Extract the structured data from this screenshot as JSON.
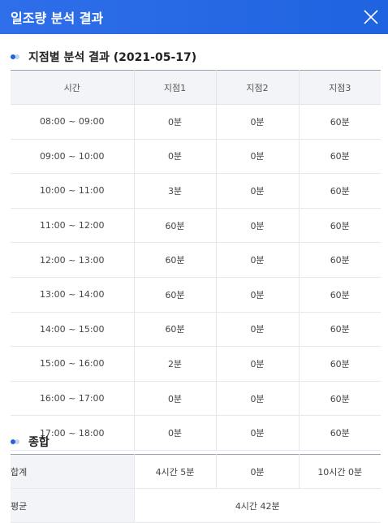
{
  "header": {
    "title": "일조량 분석 결과"
  },
  "section1": {
    "title": "지점별 분석 결과 (2021-05-17)"
  },
  "table": {
    "columns": [
      "시간",
      "지점1",
      "지점2",
      "지점3"
    ],
    "rows": [
      [
        "08:00 ~ 09:00",
        "0분",
        "0분",
        "60분"
      ],
      [
        "09:00 ~ 10:00",
        "0분",
        "0분",
        "60분"
      ],
      [
        "10:00 ~ 11:00",
        "3분",
        "0분",
        "60분"
      ],
      [
        "11:00 ~ 12:00",
        "60분",
        "0분",
        "60분"
      ],
      [
        "12:00 ~ 13:00",
        "60분",
        "0분",
        "60분"
      ],
      [
        "13:00 ~ 14:00",
        "60분",
        "0분",
        "60분"
      ],
      [
        "14:00 ~ 15:00",
        "60분",
        "0분",
        "60분"
      ],
      [
        "15:00 ~ 16:00",
        "2분",
        "0분",
        "60분"
      ],
      [
        "16:00 ~ 17:00",
        "0분",
        "0분",
        "60분"
      ],
      [
        "17:00 ~ 18:00",
        "0분",
        "0분",
        "60분"
      ]
    ]
  },
  "section2": {
    "title": "종합"
  },
  "summary": {
    "total": {
      "label": "합계",
      "values": [
        "4시간 5분",
        "0분",
        "10시간 0분"
      ]
    },
    "average": {
      "label": "평균",
      "value": "4시간 42분"
    }
  },
  "icons": {
    "close": "close-icon",
    "bullet": "bullet-dot-icon"
  },
  "colors": {
    "header": "#1f63e0",
    "accent": "#1f63e0",
    "header_cell": "#f2f4f7"
  }
}
